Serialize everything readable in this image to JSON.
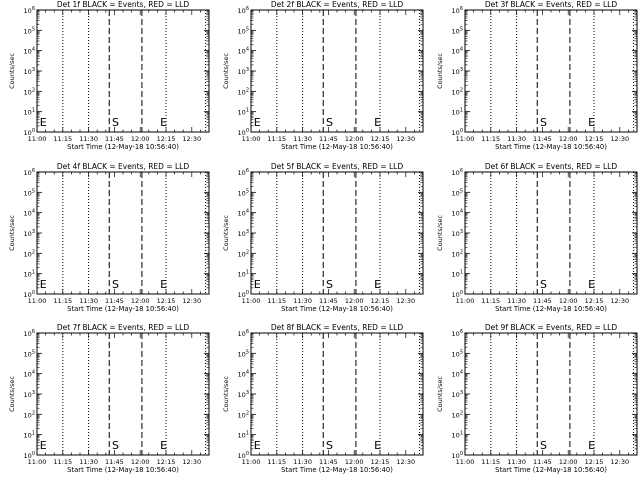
{
  "figure": {
    "background": "#ffffff",
    "foreground": "#000000"
  },
  "chart_data": [
    {
      "type": "line",
      "title": "Det 1f BLACK = Events, RED = LLD",
      "xlabel": "Start Time (12-May-18 10:56:40)",
      "ylabel": "Counts/sec",
      "log_y": true,
      "xlim": [
        "11:00",
        "12:40"
      ],
      "ylim": [
        "10^0",
        "10^6"
      ],
      "x_tick_labels": [
        "11:00",
        "11:15",
        "11:30",
        "11:45",
        "12:00",
        "12:15",
        "12:30"
      ],
      "y_tick_labels": [
        "10^0",
        "10^1",
        "10^2",
        "10^3",
        "10^4",
        "10^5",
        "10^6"
      ],
      "dotted_lines": [
        "11:15",
        "11:30",
        "12:15",
        "12:38"
      ],
      "dashed_lines": [
        "11:42",
        "12:01"
      ],
      "markers": [
        {
          "label": "E",
          "x": "11:01"
        },
        {
          "label": "S",
          "x": "11:43"
        },
        {
          "label": "E",
          "x": "12:11"
        }
      ],
      "series": []
    },
    {
      "type": "line",
      "title": "Det 2f BLACK = Events, RED = LLD",
      "xlabel": "Start Time (12-May-18 10:56:40)",
      "ylabel": "Counts/sec",
      "log_y": true,
      "xlim": [
        "11:00",
        "12:40"
      ],
      "ylim": [
        "10^0",
        "10^6"
      ],
      "x_tick_labels": [
        "11:00",
        "11:15",
        "11:30",
        "11:45",
        "12:00",
        "12:15",
        "12:30"
      ],
      "y_tick_labels": [
        "10^0",
        "10^1",
        "10^2",
        "10^3",
        "10^4",
        "10^5",
        "10^6"
      ],
      "dotted_lines": [
        "11:15",
        "11:30",
        "12:15",
        "12:38"
      ],
      "dashed_lines": [
        "11:42",
        "12:01"
      ],
      "markers": [
        {
          "label": "E",
          "x": "11:01"
        },
        {
          "label": "S",
          "x": "11:43"
        },
        {
          "label": "E",
          "x": "12:11"
        }
      ],
      "series": []
    },
    {
      "type": "line",
      "title": "Det 3f BLACK = Events, RED = LLD",
      "xlabel": "Start Time (12-May-18 10:56:40)",
      "ylabel": "Counts/sec",
      "log_y": true,
      "xlim": [
        "11:00",
        "12:40"
      ],
      "ylim": [
        "10^0",
        "10^6"
      ],
      "x_tick_labels": [
        "11:00",
        "11:15",
        "11:30",
        "11:45",
        "12:00",
        "12:15",
        "12:30"
      ],
      "y_tick_labels": [
        "10^0",
        "10^1",
        "10^2",
        "10^3",
        "10^4",
        "10^5",
        "10^6"
      ],
      "dotted_lines": [
        "11:15",
        "11:30",
        "12:15",
        "12:38"
      ],
      "dashed_lines": [
        "11:42",
        "12:01"
      ],
      "markers": [
        {
          "label": "S",
          "x": "11:43"
        },
        {
          "label": "E",
          "x": "12:11"
        }
      ],
      "series": []
    },
    {
      "type": "line",
      "title": "Det 4f BLACK = Events, RED = LLD",
      "xlabel": "Start Time (12-May-18 10:56:40)",
      "ylabel": "Counts/sec",
      "log_y": true,
      "xlim": [
        "11:00",
        "12:40"
      ],
      "ylim": [
        "10^0",
        "10^6"
      ],
      "x_tick_labels": [
        "11:00",
        "11:15",
        "11:30",
        "11:45",
        "12:00",
        "12:15",
        "12:30"
      ],
      "y_tick_labels": [
        "10^0",
        "10^1",
        "10^2",
        "10^3",
        "10^4",
        "10^5",
        "10^6"
      ],
      "dotted_lines": [
        "11:15",
        "11:30",
        "12:15",
        "12:38"
      ],
      "dashed_lines": [
        "11:42",
        "12:01"
      ],
      "markers": [
        {
          "label": "E",
          "x": "11:01"
        },
        {
          "label": "S",
          "x": "11:43"
        },
        {
          "label": "E",
          "x": "12:11"
        }
      ],
      "series": []
    },
    {
      "type": "line",
      "title": "Det 5f BLACK = Events, RED = LLD",
      "xlabel": "Start Time (12-May-18 10:56:40)",
      "ylabel": "Counts/sec",
      "log_y": true,
      "xlim": [
        "11:00",
        "12:40"
      ],
      "ylim": [
        "10^0",
        "10^6"
      ],
      "x_tick_labels": [
        "11:00",
        "11:15",
        "11:30",
        "11:45",
        "12:00",
        "12:15",
        "12:30"
      ],
      "y_tick_labels": [
        "10^0",
        "10^1",
        "10^2",
        "10^3",
        "10^4",
        "10^5",
        "10^6"
      ],
      "dotted_lines": [
        "11:15",
        "11:30",
        "12:15",
        "12:38"
      ],
      "dashed_lines": [
        "11:42",
        "12:01"
      ],
      "markers": [
        {
          "label": "E",
          "x": "11:01"
        },
        {
          "label": "S",
          "x": "11:43"
        },
        {
          "label": "E",
          "x": "12:11"
        }
      ],
      "series": []
    },
    {
      "type": "line",
      "title": "Det 6f BLACK = Events, RED = LLD",
      "xlabel": "Start Time (12-May-18 10:56:40)",
      "ylabel": "Counts/sec",
      "log_y": true,
      "xlim": [
        "11:00",
        "12:40"
      ],
      "ylim": [
        "10^0",
        "10^6"
      ],
      "x_tick_labels": [
        "11:00",
        "11:15",
        "11:30",
        "11:45",
        "12:00",
        "12:15",
        "12:30"
      ],
      "y_tick_labels": [
        "10^0",
        "10^1",
        "10^2",
        "10^3",
        "10^4",
        "10^5",
        "10^6"
      ],
      "dotted_lines": [
        "11:15",
        "11:30",
        "12:15",
        "12:38"
      ],
      "dashed_lines": [
        "11:42",
        "12:01"
      ],
      "markers": [
        {
          "label": "S",
          "x": "11:43"
        },
        {
          "label": "E",
          "x": "12:11"
        }
      ],
      "series": []
    },
    {
      "type": "line",
      "title": "Det 7f BLACK = Events, RED = LLD",
      "xlabel": "Start Time (12-May-18 10:56:40)",
      "ylabel": "Counts/sec",
      "log_y": true,
      "xlim": [
        "11:00",
        "12:40"
      ],
      "ylim": [
        "10^0",
        "10^6"
      ],
      "x_tick_labels": [
        "11:00",
        "11:15",
        "11:30",
        "11:45",
        "12:00",
        "12:15",
        "12:30"
      ],
      "y_tick_labels": [
        "10^0",
        "10^1",
        "10^2",
        "10^3",
        "10^4",
        "10^5",
        "10^6"
      ],
      "dotted_lines": [
        "11:15",
        "11:30",
        "12:15",
        "12:38"
      ],
      "dashed_lines": [
        "11:42",
        "12:01"
      ],
      "markers": [
        {
          "label": "E",
          "x": "11:01"
        },
        {
          "label": "S",
          "x": "11:43"
        },
        {
          "label": "E",
          "x": "12:11"
        }
      ],
      "series": []
    },
    {
      "type": "line",
      "title": "Det 8f BLACK = Events, RED = LLD",
      "xlabel": "Start Time (12-May-18 10:56:40)",
      "ylabel": "Counts/sec",
      "log_y": true,
      "xlim": [
        "11:00",
        "12:40"
      ],
      "ylim": [
        "10^0",
        "10^6"
      ],
      "x_tick_labels": [
        "11:00",
        "11:15",
        "11:30",
        "11:45",
        "12:00",
        "12:15",
        "12:30"
      ],
      "y_tick_labels": [
        "10^0",
        "10^1",
        "10^2",
        "10^3",
        "10^4",
        "10^5",
        "10^6"
      ],
      "dotted_lines": [
        "11:15",
        "11:30",
        "12:15",
        "12:38"
      ],
      "dashed_lines": [
        "11:42",
        "12:01"
      ],
      "markers": [
        {
          "label": "E",
          "x": "11:01"
        },
        {
          "label": "S",
          "x": "11:43"
        },
        {
          "label": "E",
          "x": "12:11"
        }
      ],
      "series": []
    },
    {
      "type": "line",
      "title": "Det 9f BLACK = Events, RED = LLD",
      "xlabel": "Start Time (12-May-18 10:56:40)",
      "ylabel": "Counts/sec",
      "log_y": true,
      "xlim": [
        "11:00",
        "12:40"
      ],
      "ylim": [
        "10^0",
        "10^6"
      ],
      "x_tick_labels": [
        "11:00",
        "11:15",
        "11:30",
        "11:45",
        "12:00",
        "12:15",
        "12:30"
      ],
      "y_tick_labels": [
        "10^0",
        "10^1",
        "10^2",
        "10^3",
        "10^4",
        "10^5",
        "10^6"
      ],
      "dotted_lines": [
        "11:15",
        "11:30",
        "12:15",
        "12:38"
      ],
      "dashed_lines": [
        "11:42",
        "12:01"
      ],
      "markers": [
        {
          "label": "S",
          "x": "11:43"
        },
        {
          "label": "E",
          "x": "12:11"
        }
      ],
      "series": []
    }
  ]
}
